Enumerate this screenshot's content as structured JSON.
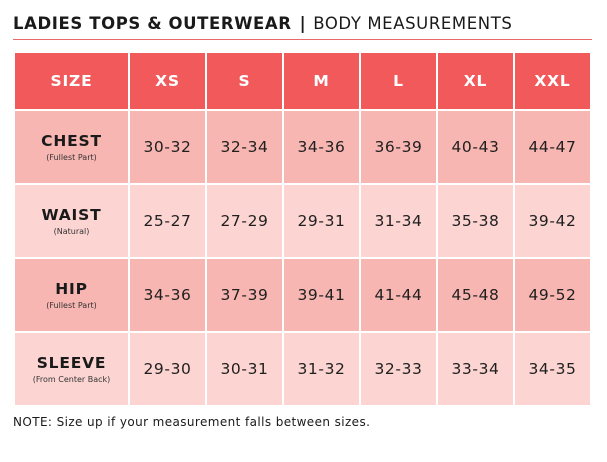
{
  "header": {
    "title_bold": "LADIES TOPS & OUTERWEAR",
    "separator": "|",
    "title_light": "BODY MEASUREMENTS"
  },
  "table": {
    "corner_label": "SIZE",
    "sizes": [
      "XS",
      "S",
      "M",
      "L",
      "XL",
      "XXL"
    ],
    "rows": [
      {
        "name": "CHEST",
        "sub": "(Fullest Part)",
        "values": [
          "30-32",
          "32-34",
          "34-36",
          "36-39",
          "40-43",
          "44-47"
        ]
      },
      {
        "name": "WAIST",
        "sub": "(Natural)",
        "values": [
          "25-27",
          "27-29",
          "29-31",
          "31-34",
          "35-38",
          "39-42"
        ]
      },
      {
        "name": "HIP",
        "sub": "(Fullest Part)",
        "values": [
          "34-36",
          "37-39",
          "39-41",
          "41-44",
          "45-48",
          "49-52"
        ]
      },
      {
        "name": "SLEEVE",
        "sub": "(From Center Back)",
        "values": [
          "29-30",
          "30-31",
          "31-32",
          "32-33",
          "33-34",
          "34-35"
        ]
      }
    ]
  },
  "note": "NOTE: Size up if your measurement falls between sizes.",
  "colors": {
    "header_red": "#f2595b",
    "row_dark": "#f8b6b2",
    "row_light": "#fcd5d2",
    "rule": "#e86a6a"
  }
}
